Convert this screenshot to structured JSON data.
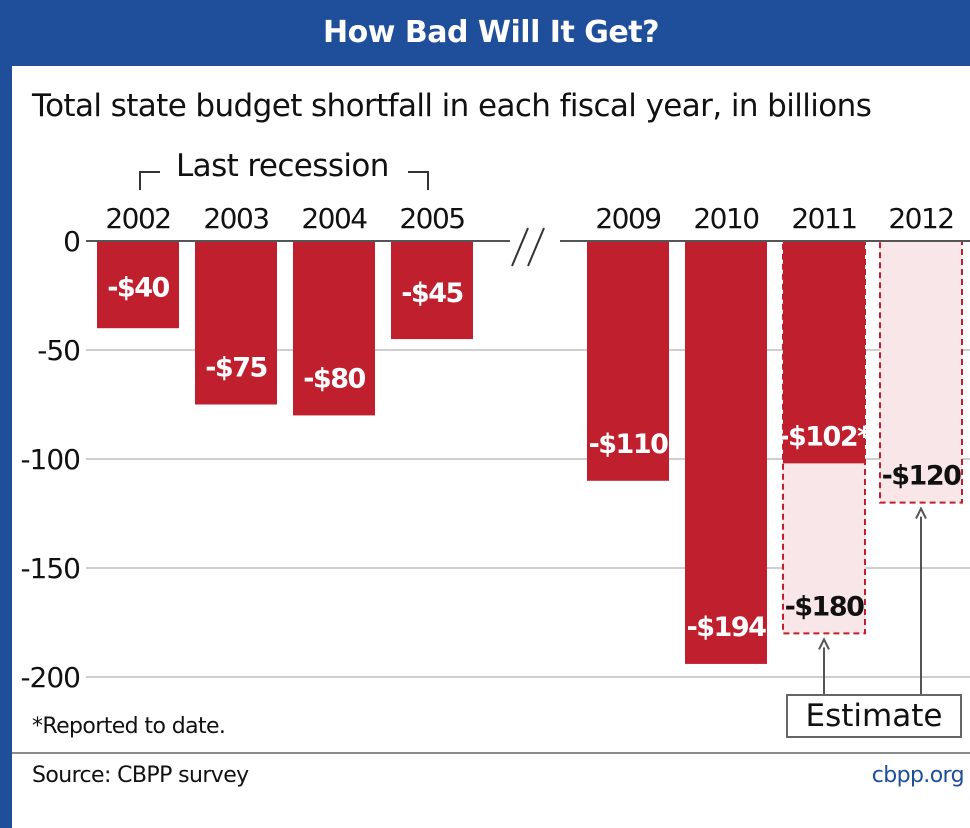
{
  "header": {
    "title": "How Bad Will It Get?"
  },
  "subtitle": "Total state budget shortfall in each fiscal year, in billions",
  "recession_label": "Last recession",
  "footnote": "*Reported to date.",
  "estimate_label": "Estimate",
  "source": "Source: CBPP survey",
  "site": "cbpp.org",
  "axis_break_mark": "//",
  "colors": {
    "brand": "#1f4e9a",
    "bar": "#c0202e",
    "estimate_fill": "#f9e6e8",
    "estimate_border": "#c0202e"
  },
  "chart_data": {
    "type": "bar",
    "title": "How Bad Will It Get?",
    "subtitle": "Total state budget shortfall in each fiscal year, in billions",
    "categories": [
      "2002",
      "2003",
      "2004",
      "2005",
      "2009",
      "2010",
      "2011",
      "2012"
    ],
    "ylim": [
      -200,
      0
    ],
    "yticks": [
      0,
      -50,
      -100,
      -150,
      -200
    ],
    "ytick_labels": [
      "0",
      "-50",
      "-100",
      "-150",
      "-200"
    ],
    "grid": true,
    "series": [
      {
        "values": [
          -40,
          -75,
          -80,
          -45,
          -110,
          -194,
          -102,
          null
        ],
        "labels": [
          "-$40",
          "-$75",
          "-$80",
          "-$45",
          "-$110",
          "-$194",
          "-$102*",
          ""
        ]
      },
      {
        "name": "Estimate",
        "values": [
          null,
          null,
          null,
          null,
          null,
          null,
          -180,
          -120
        ],
        "labels": [
          "",
          "",
          "",
          "",
          "",
          "",
          "-$180",
          "-$120"
        ]
      }
    ]
  }
}
